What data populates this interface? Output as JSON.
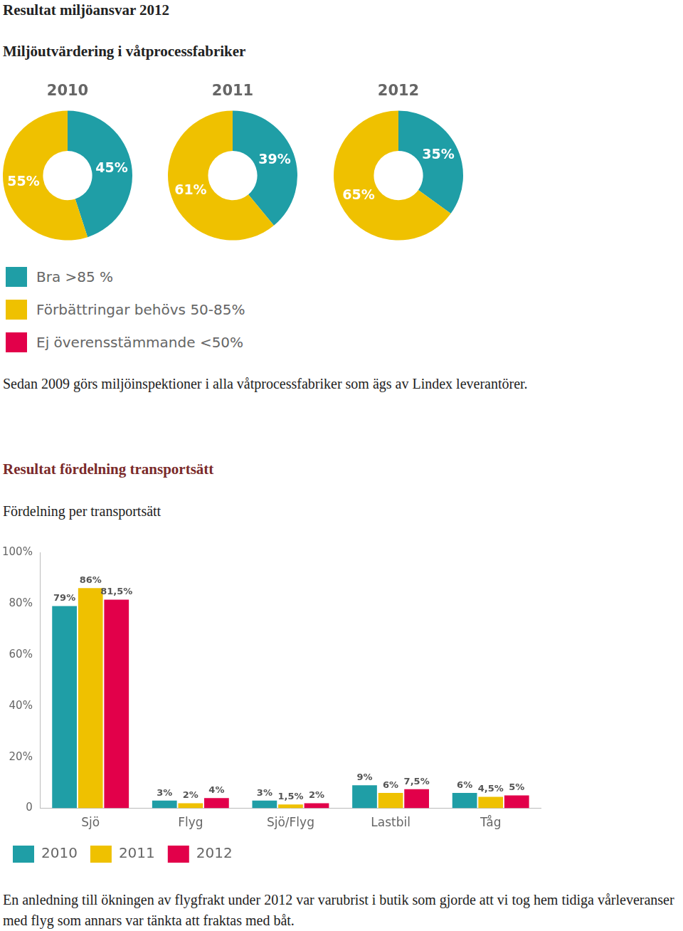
{
  "page": {
    "title": "Resultat miljöansvar 2012",
    "section1": {
      "heading": "Miljöutvärdering i våtprocessfabriker",
      "legend": [
        {
          "name": "Bra >85 %",
          "color": "#1f9ea6"
        },
        {
          "name": "Förbättringar behövs 50-85%",
          "color": "#efc100"
        },
        {
          "name": "Ej överensstämmande <50%",
          "color": "#e2004a"
        }
      ],
      "caption": "Sedan 2009 görs miljöinspektioner i alla våtprocessfabriker som ägs av Lindex leverantörer."
    },
    "section2": {
      "heading": "Resultat fördelning transportsätt",
      "subheading": "Fördelning per transportsätt",
      "caption": "En anledning till ökningen av flygfrakt under 2012 var varubrist i butik som gjorde att vi tog hem tidiga vårleveranser med flyg som annars var tänkta att fraktas med båt."
    }
  },
  "chart_data": [
    {
      "type": "doughnut",
      "title": "2010",
      "values": [
        45,
        55
      ],
      "colors": [
        "#1f9ea6",
        "#efc100"
      ],
      "data_labels": true,
      "value_labels": [
        "45%",
        "55%"
      ]
    },
    {
      "type": "doughnut",
      "title": "2011",
      "values": [
        39,
        61
      ],
      "colors": [
        "#1f9ea6",
        "#efc100"
      ],
      "data_labels": true,
      "value_labels": [
        "39%",
        "61%"
      ]
    },
    {
      "type": "doughnut",
      "title": "2012",
      "values": [
        35,
        65
      ],
      "colors": [
        "#1f9ea6",
        "#efc100"
      ],
      "data_labels": true,
      "value_labels": [
        "35%",
        "65%"
      ]
    },
    {
      "type": "bar",
      "categories": [
        "Sjö",
        "Flyg",
        "Sjö/Flyg",
        "Lastbil",
        "Tåg"
      ],
      "series": [
        {
          "name": "2010",
          "color": "#1f9ea6",
          "values": [
            79,
            3,
            3,
            9,
            6
          ],
          "value_labels": [
            "79%",
            "3%",
            "3%",
            "9%",
            "6%"
          ]
        },
        {
          "name": "2011",
          "color": "#efc100",
          "values": [
            86,
            2,
            1.5,
            6,
            4.5
          ],
          "value_labels": [
            "86%",
            "2%",
            "1,5%",
            "6%",
            "4,5%"
          ]
        },
        {
          "name": "2012",
          "color": "#e2004a",
          "values": [
            81.5,
            4,
            2,
            7.5,
            5
          ],
          "value_labels": [
            "81,5%",
            "4%",
            "2%",
            "7,5%",
            "5%"
          ]
        }
      ],
      "ylim": [
        0,
        100
      ],
      "yticks": [
        0,
        {
          "value": 20,
          "label": "20%"
        },
        {
          "value": 40,
          "label": "40%"
        },
        {
          "value": 60,
          "label": "60%"
        },
        {
          "value": 80,
          "label": "80%"
        },
        {
          "value": 100,
          "label": "100%"
        }
      ],
      "grid": false,
      "legend": "bottom",
      "data_labels": true
    }
  ]
}
